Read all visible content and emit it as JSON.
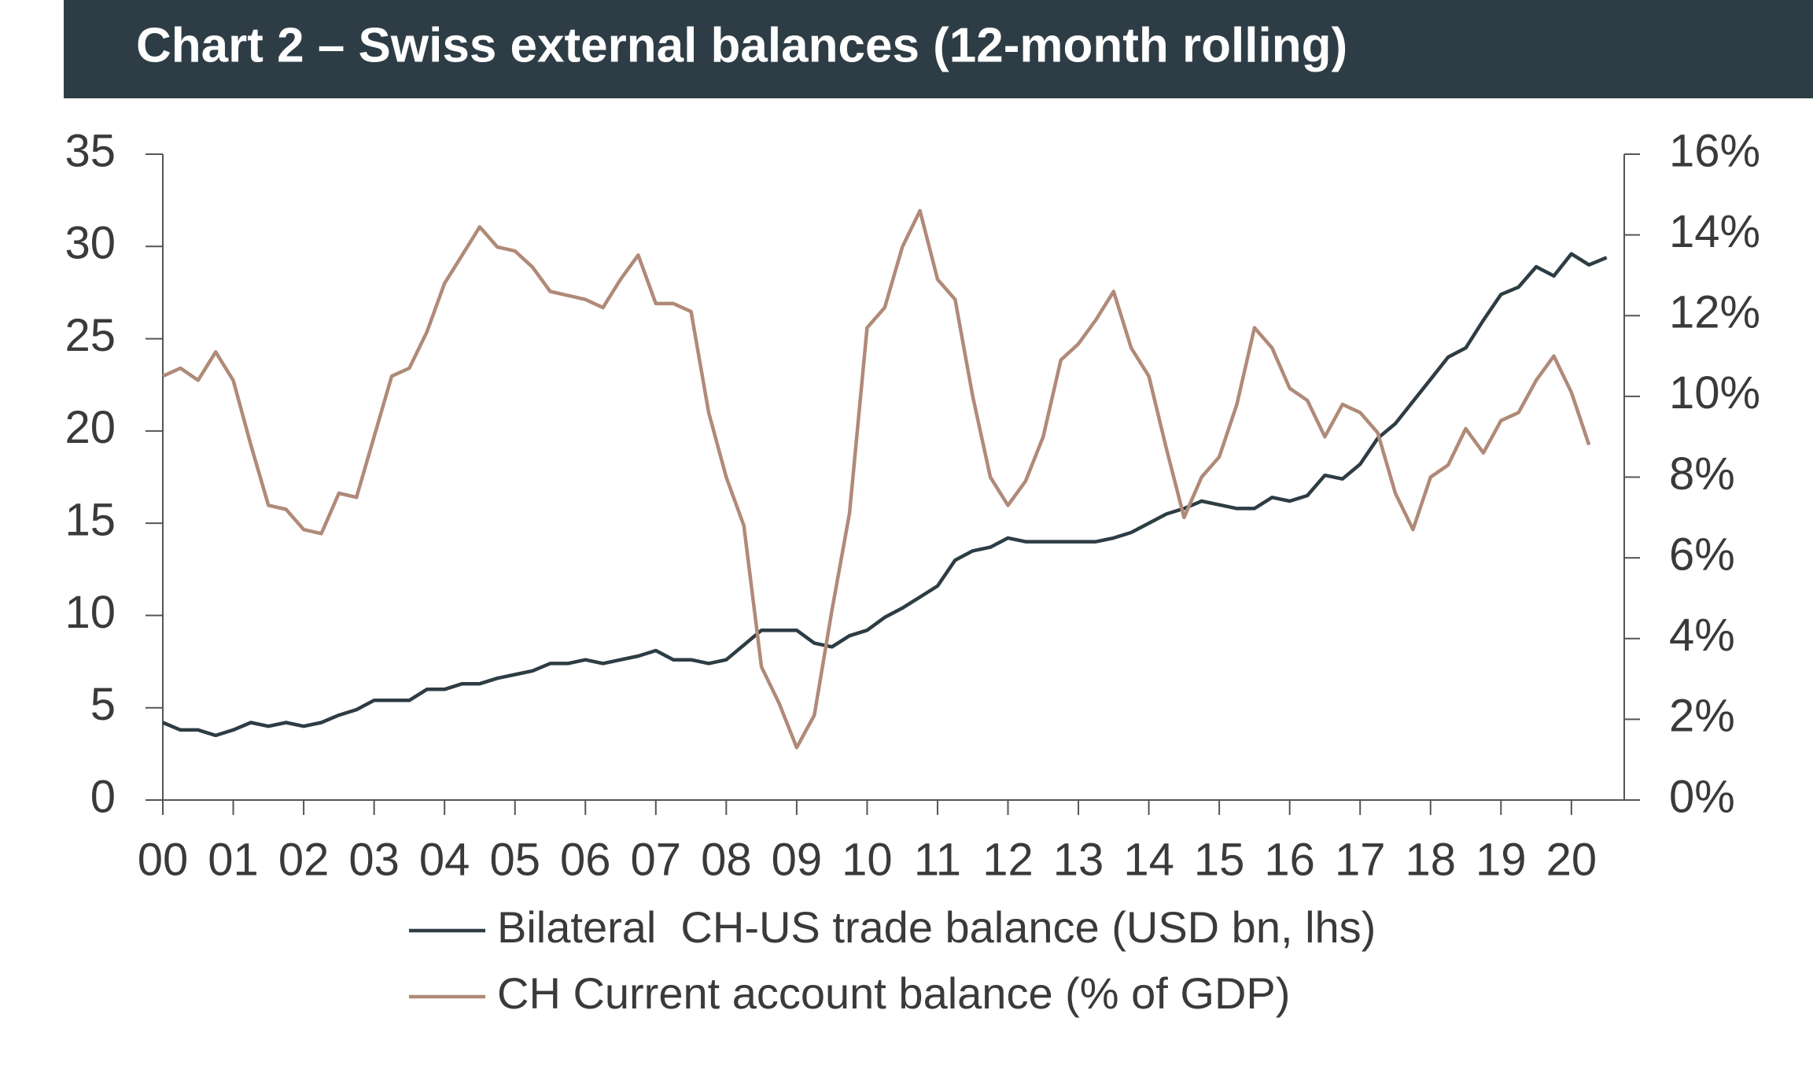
{
  "chart_data": {
    "type": "line",
    "title": "Chart 2 – Swiss external balances (12-month rolling)",
    "x": [
      0,
      0.25,
      0.5,
      0.75,
      1,
      1.25,
      1.5,
      1.75,
      2,
      2.25,
      2.5,
      2.75,
      3,
      3.25,
      3.5,
      3.75,
      4,
      4.25,
      4.5,
      4.75,
      5,
      5.25,
      5.5,
      5.75,
      6,
      6.25,
      6.5,
      6.75,
      7,
      7.25,
      7.5,
      7.75,
      8,
      8.25,
      8.5,
      8.75,
      9,
      9.25,
      9.5,
      9.75,
      10,
      10.25,
      10.5,
      10.75,
      11,
      11.25,
      11.5,
      11.75,
      12,
      12.25,
      12.5,
      12.75,
      13,
      13.25,
      13.5,
      13.75,
      14,
      14.25,
      14.5,
      14.75,
      15,
      15.25,
      15.5,
      15.75,
      16,
      16.25,
      16.5,
      16.75,
      17,
      17.25,
      17.5,
      17.75,
      18,
      18.25,
      18.5,
      18.75,
      19,
      19.25,
      19.5,
      19.75,
      20,
      20.25,
      20.5
    ],
    "xlim": [
      0,
      20.75
    ],
    "xticks": [
      {
        "value": 0,
        "label": "00"
      },
      {
        "value": 1,
        "label": "01"
      },
      {
        "value": 2,
        "label": "02"
      },
      {
        "value": 3,
        "label": "03"
      },
      {
        "value": 4,
        "label": "04"
      },
      {
        "value": 5,
        "label": "05"
      },
      {
        "value": 6,
        "label": "06"
      },
      {
        "value": 7,
        "label": "07"
      },
      {
        "value": 8,
        "label": "08"
      },
      {
        "value": 9,
        "label": "09"
      },
      {
        "value": 10,
        "label": "10"
      },
      {
        "value": 11,
        "label": "11"
      },
      {
        "value": 12,
        "label": "12"
      },
      {
        "value": 13,
        "label": "13"
      },
      {
        "value": 14,
        "label": "14"
      },
      {
        "value": 15,
        "label": "15"
      },
      {
        "value": 16,
        "label": "16"
      },
      {
        "value": 17,
        "label": "17"
      },
      {
        "value": 18,
        "label": "18"
      },
      {
        "value": 19,
        "label": "19"
      },
      {
        "value": 20,
        "label": "20"
      }
    ],
    "ylim": [
      0,
      35
    ],
    "yticks": [
      0,
      5,
      10,
      15,
      20,
      25,
      30,
      35
    ],
    "y2lim": [
      0,
      16
    ],
    "y2ticks": [
      {
        "value": 0,
        "label": "0%"
      },
      {
        "value": 2,
        "label": "2%"
      },
      {
        "value": 4,
        "label": "4%"
      },
      {
        "value": 6,
        "label": "6%"
      },
      {
        "value": 8,
        "label": "8%"
      },
      {
        "value": 10,
        "label": "10%"
      },
      {
        "value": 12,
        "label": "12%"
      },
      {
        "value": 14,
        "label": "14%"
      },
      {
        "value": 16,
        "label": "16%"
      }
    ],
    "series": [
      {
        "name": "Bilateral  CH-US trade balance (USD bn, lhs)",
        "color": "#2e3c44",
        "values": [
          4.2,
          3.8,
          3.8,
          3.5,
          3.8,
          4.2,
          4.0,
          4.2,
          4.0,
          4.2,
          4.6,
          4.9,
          5.4,
          5.4,
          5.4,
          6.0,
          6.0,
          6.3,
          6.3,
          6.6,
          6.8,
          7.0,
          7.4,
          7.4,
          7.6,
          7.4,
          7.6,
          7.8,
          8.1,
          7.6,
          7.6,
          7.4,
          7.6,
          8.4,
          9.2,
          9.2,
          9.2,
          8.5,
          8.3,
          8.9,
          9.2,
          9.9,
          10.4,
          11.0,
          11.6,
          13.0,
          13.5,
          13.7,
          14.2,
          14.0,
          14.0,
          14.0,
          14.0,
          14.0,
          14.2,
          14.5,
          15.0,
          15.5,
          15.8,
          16.2,
          16.0,
          15.8,
          15.8,
          16.4,
          16.2,
          16.5,
          17.6,
          17.4,
          18.2,
          19.6,
          20.4,
          21.6,
          22.8,
          24.0,
          24.5,
          26.0,
          27.4,
          27.8,
          28.9,
          28.4,
          29.6,
          29.0,
          29.4
        ]
      },
      {
        "name": "CH Current account balance (% of GDP)",
        "color": "#b08a78",
        "axis": "y2",
        "values": [
          10.5,
          10.7,
          10.4,
          11.1,
          10.4,
          8.8,
          7.3,
          7.2,
          6.7,
          6.6,
          7.6,
          7.5,
          9.0,
          10.5,
          10.7,
          11.6,
          12.8,
          13.5,
          14.2,
          13.7,
          13.6,
          13.2,
          12.6,
          12.5,
          12.4,
          12.2,
          12.9,
          13.5,
          12.3,
          12.3,
          12.1,
          9.6,
          8.0,
          6.8,
          3.3,
          2.4,
          1.3,
          2.1,
          4.7,
          7.1,
          11.7,
          12.2,
          13.7,
          14.6,
          12.9,
          12.4,
          10.0,
          8.0,
          7.3,
          7.9,
          9.0,
          10.9,
          11.3,
          11.9,
          12.6,
          11.2,
          10.5,
          8.7,
          7.0,
          8.0,
          8.5,
          9.8,
          11.7,
          11.2,
          10.2,
          9.9,
          9.0,
          9.8,
          9.6,
          9.1,
          7.6,
          6.7,
          8.0,
          8.3,
          9.2,
          8.6,
          9.4,
          9.6,
          10.4,
          11.0,
          10.1,
          8.8,
          null
        ]
      }
    ]
  }
}
